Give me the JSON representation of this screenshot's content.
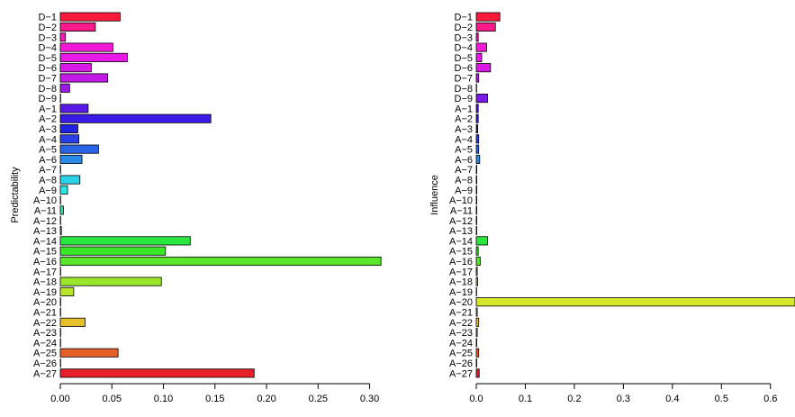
{
  "chart_data": [
    {
      "type": "bar",
      "orientation": "horizontal",
      "title": "",
      "xlabel": "",
      "ylabel": "Predictability",
      "xlim": [
        0,
        0.31
      ],
      "xticks": [
        0.0,
        0.05,
        0.1,
        0.15,
        0.2,
        0.25,
        0.3
      ],
      "xtick_labels": [
        "0.00",
        "0.05",
        "0.10",
        "0.15",
        "0.20",
        "0.25",
        "0.30"
      ],
      "grid": false,
      "categories": [
        "D−1",
        "D−2",
        "D−3",
        "D−4",
        "D−5",
        "D−6",
        "D−7",
        "D−8",
        "D−9",
        "A−1",
        "A−2",
        "A−3",
        "A−4",
        "A−5",
        "A−6",
        "A−7",
        "A−8",
        "A−9",
        "A−10",
        "A−11",
        "A−12",
        "A−13",
        "A−14",
        "A−15",
        "A−16",
        "A−17",
        "A−18",
        "A−19",
        "A−20",
        "A−21",
        "A−22",
        "A−23",
        "A−24",
        "A−25",
        "A−26",
        "A−27"
      ],
      "values": [
        0.058,
        0.034,
        0.005,
        0.051,
        0.065,
        0.03,
        0.046,
        0.009,
        0.0,
        0.027,
        0.146,
        0.017,
        0.018,
        0.037,
        0.021,
        0.0,
        0.019,
        0.007,
        0.0,
        0.003,
        0.0,
        0.001,
        0.126,
        0.102,
        0.311,
        0.0,
        0.098,
        0.013,
        0.0,
        0.0,
        0.024,
        0.0,
        0.0,
        0.056,
        0.0,
        0.188
      ],
      "colors": [
        "#ff1a3c",
        "#ff1a8c",
        "#ff1ab5",
        "#f21ad6",
        "#e81ae8",
        "#d91ae6",
        "#c21ae6",
        "#9a1ae6",
        "#7a1ae6",
        "#5a1ae6",
        "#3a1ae6",
        "#2222e6",
        "#2a3fe6",
        "#2a64e6",
        "#2a8ae6",
        "#2aaee6",
        "#2ad2e6",
        "#2ae6e0",
        "#2ae6c0",
        "#2ae6a0",
        "#2ae680",
        "#2ae660",
        "#2ae640",
        "#3ae62a",
        "#5ae62a",
        "#7ae62a",
        "#9ae62a",
        "#b8e62a",
        "#d6e62a",
        "#e6e02a",
        "#e6c02a",
        "#e6a02a",
        "#e6802a",
        "#e6602a",
        "#e6402a",
        "#e6202a"
      ]
    },
    {
      "type": "bar",
      "orientation": "horizontal",
      "title": "",
      "xlabel": "",
      "ylabel": "Influence",
      "xlim": [
        0,
        0.65
      ],
      "xticks": [
        0.0,
        0.1,
        0.2,
        0.3,
        0.4,
        0.5,
        0.6
      ],
      "xtick_labels": [
        "0.0",
        "0.1",
        "0.2",
        "0.3",
        "0.4",
        "0.5",
        "0.6"
      ],
      "grid": false,
      "categories": [
        "D−1",
        "D−2",
        "D−3",
        "D−4",
        "D−5",
        "D−6",
        "D−7",
        "D−8",
        "D−9",
        "A−1",
        "A−2",
        "A−3",
        "A−4",
        "A−5",
        "A−6",
        "A−7",
        "A−8",
        "A−9",
        "A−10",
        "A−11",
        "A−12",
        "A−13",
        "A−14",
        "A−15",
        "A−16",
        "A−17",
        "A−18",
        "A−19",
        "A−20",
        "A−21",
        "A−22",
        "A−23",
        "A−24",
        "A−25",
        "A−26",
        "A−27"
      ],
      "values": [
        0.048,
        0.039,
        0.004,
        0.021,
        0.011,
        0.029,
        0.005,
        0.0,
        0.023,
        0.004,
        0.004,
        0.003,
        0.005,
        0.005,
        0.007,
        0.001,
        0.001,
        0.001,
        0.001,
        0.001,
        0.001,
        0.001,
        0.023,
        0.004,
        0.008,
        0.002,
        0.003,
        0.0,
        0.65,
        0.002,
        0.005,
        0.002,
        0.001,
        0.005,
        0.001,
        0.006
      ],
      "colors": [
        "#ff1a3c",
        "#ff1a8c",
        "#ff1ab5",
        "#f21ad6",
        "#e81ae8",
        "#d91ae6",
        "#c21ae6",
        "#9a1ae6",
        "#7a1ae6",
        "#5a1ae6",
        "#3a1ae6",
        "#2222e6",
        "#2a3fe6",
        "#2a64e6",
        "#2a8ae6",
        "#2aaee6",
        "#2ad2e6",
        "#2ae6e0",
        "#2ae6c0",
        "#2ae6a0",
        "#2ae680",
        "#2ae660",
        "#2ae640",
        "#3ae62a",
        "#5ae62a",
        "#7ae62a",
        "#9ae62a",
        "#b8e62a",
        "#d6e62a",
        "#e6e02a",
        "#e6c02a",
        "#e6a02a",
        "#e6802a",
        "#e6602a",
        "#e6402a",
        "#e6202a"
      ]
    }
  ]
}
